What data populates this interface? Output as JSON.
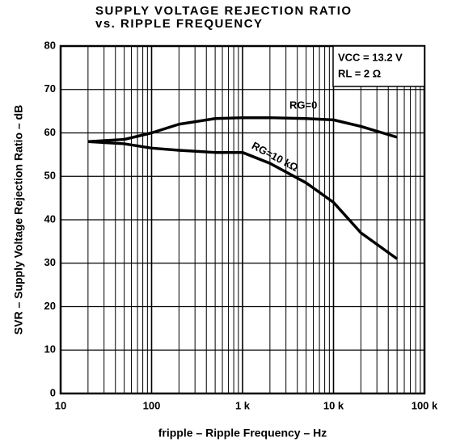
{
  "chart_data": {
    "type": "line",
    "title": "SUPPLY VOLTAGE REJECTION RATIO vs. RIPPLE FREQUENCY",
    "y_label": "SVR – Supply Voltage Rejection Ratio – dB",
    "x_label": "fripple – Ripple Frequency – Hz",
    "annotations": [
      "VCC = 13.2 V",
      "RL = 2 Ω"
    ],
    "x": [
      20,
      50,
      100,
      200,
      500,
      1000,
      2000,
      5000,
      10000,
      20000,
      50000
    ],
    "series": [
      {
        "name": "RG=0",
        "color": "#000000",
        "values": [
          58,
          58.5,
          60,
          62,
          63.3,
          63.5,
          63.5,
          63.3,
          63,
          61.5,
          59
        ]
      },
      {
        "name": "RG=10 kΩ",
        "color": "#000000",
        "values": [
          58,
          57.5,
          56.5,
          56,
          55.5,
          55.5,
          53,
          48.5,
          44,
          37,
          31
        ]
      }
    ],
    "xlim": [
      10,
      100000
    ],
    "log_x": true,
    "xticks": [
      10,
      100,
      {
        "value": 1000,
        "label": "1 k"
      },
      {
        "value": 10000,
        "label": "10 k"
      },
      {
        "value": 100000,
        "label": "100 k"
      }
    ],
    "ylim": [
      0,
      80
    ],
    "yticks": [
      0,
      10,
      20,
      30,
      40,
      50,
      60,
      70,
      80
    ],
    "grid": true
  }
}
